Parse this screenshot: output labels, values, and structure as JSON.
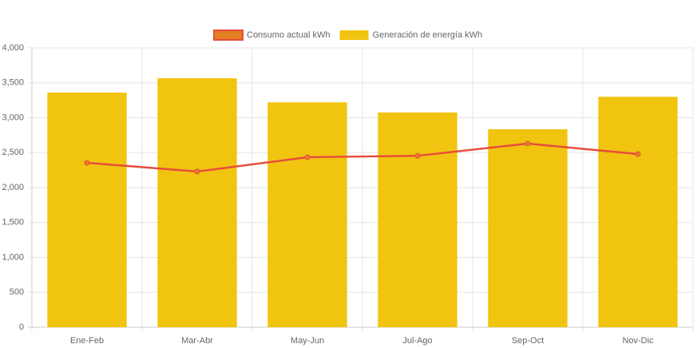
{
  "chart_data": {
    "type": "combo",
    "categories": [
      "Ene-Feb",
      "Mar-Abr",
      "May-Jun",
      "Jul-Ago",
      "Sep-Oct",
      "Nov-Dic"
    ],
    "series": [
      {
        "name": "Consumo actual kWh",
        "type": "line",
        "color": "#e74c3c",
        "point_color": "#e67e22",
        "values": [
          2355,
          2230,
          2435,
          2455,
          2630,
          2480
        ]
      },
      {
        "name": "Generación de energía kWh",
        "type": "bar",
        "color": "#f1c40f",
        "values": [
          3360,
          3565,
          3220,
          3075,
          2835,
          3300
        ]
      }
    ],
    "ylim": [
      0,
      4000
    ],
    "yticks": [
      0,
      500,
      {
        "value": 1000,
        "label": "1,000"
      },
      {
        "value": 1500,
        "label": "1,500"
      },
      {
        "value": 2000,
        "label": "2,000"
      },
      {
        "value": 2500,
        "label": "2,500"
      },
      {
        "value": 3000,
        "label": "3,000"
      },
      {
        "value": 3500,
        "label": "3,500"
      },
      {
        "value": 4000,
        "label": "4,000"
      }
    ],
    "grid": true
  }
}
